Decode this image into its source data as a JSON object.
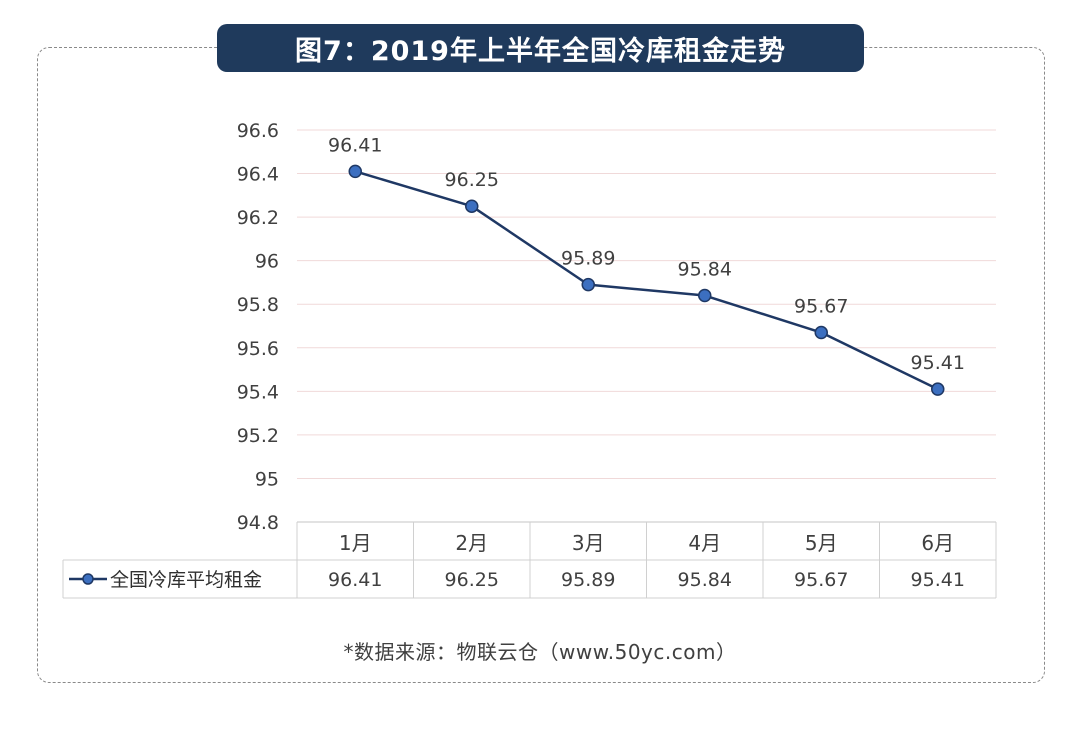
{
  "title": "图7：2019年上半年全国冷库租金走势",
  "source": "*数据来源：物联云仓（www.50yc.com）",
  "colors": {
    "line": "#1f3864",
    "marker_fill": "#3c6fc0",
    "marker_stroke": "#1f3864",
    "grid": "#f0d9d9",
    "title_bg": "#1f3a5c"
  },
  "chart_data": {
    "type": "line",
    "title": "图7：2019年上半年全国冷库租金走势",
    "categories": [
      "1月",
      "2月",
      "3月",
      "4月",
      "5月",
      "6月"
    ],
    "series": [
      {
        "name": "全国冷库平均租金",
        "values": [
          96.41,
          96.25,
          95.89,
          95.84,
          95.67,
          95.41
        ]
      }
    ],
    "ylim": [
      94.8,
      96.6
    ],
    "yticks": [
      "94.8",
      "95",
      "95.2",
      "95.4",
      "95.6",
      "95.8",
      "96",
      "96.2",
      "96.4",
      "96.6"
    ],
    "xlabel": "",
    "ylabel": "",
    "grid": true,
    "data_table": true,
    "value_labels": [
      "96.41",
      "96.25",
      "95.89",
      "95.84",
      "95.67",
      "95.41"
    ]
  }
}
